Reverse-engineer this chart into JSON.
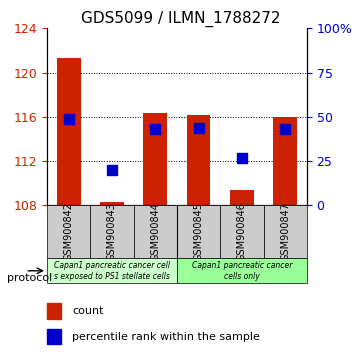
{
  "title": "GDS5099 / ILMN_1788272",
  "categories": [
    "GSM900842",
    "GSM900843",
    "GSM900844",
    "GSM900845",
    "GSM900846",
    "GSM900847"
  ],
  "count_values": [
    121.3,
    108.3,
    116.35,
    116.15,
    109.4,
    116.0
  ],
  "percentile_values": [
    48.5,
    20.0,
    43.0,
    43.5,
    26.5,
    43.0
  ],
  "baseline": 108.0,
  "ylim_left": [
    108,
    124
  ],
  "ylim_right": [
    0,
    100
  ],
  "yticks_left": [
    108,
    112,
    116,
    120,
    124
  ],
  "yticks_right": [
    0,
    25,
    50,
    75,
    100
  ],
  "yticklabels_right": [
    "0",
    "25",
    "50",
    "75",
    "100%"
  ],
  "bar_color": "#cc2200",
  "dot_color": "#0000cc",
  "group1_label": "Capan1 pancreatic cancer cell\ns exposed to PS1 stellate cells",
  "group2_label": "Capan1 pancreatic cancer\ncells only",
  "group1_color": "#ccffcc",
  "group2_color": "#99ff99",
  "group_bg_color": "#cccccc",
  "protocol_label": "protocol",
  "legend_count": "count",
  "legend_percentile": "percentile rank within the sample",
  "bar_width": 0.55,
  "dot_size": 50,
  "grid_linestyle": "dotted"
}
